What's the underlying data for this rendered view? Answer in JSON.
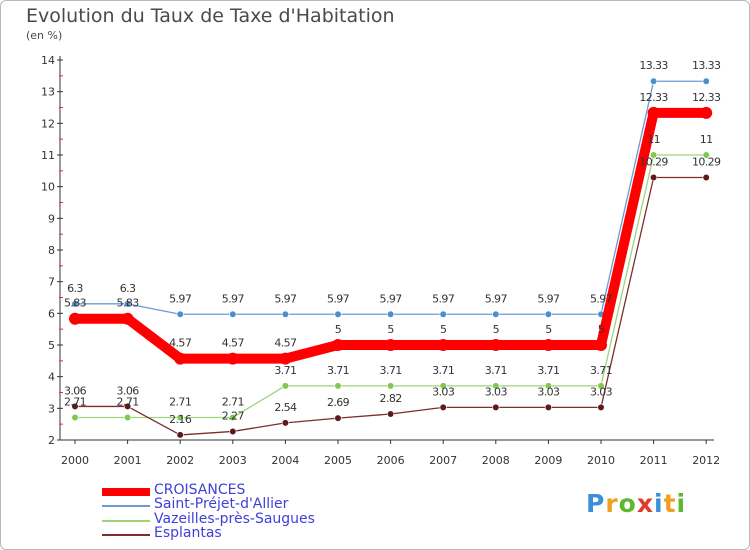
{
  "chart_data": {
    "type": "line",
    "title": "Evolution du Taux de Taxe d'Habitation",
    "subtitle": "(en %)",
    "xlabel": "",
    "ylabel": "",
    "categories": [
      "2000",
      "2001",
      "2002",
      "2003",
      "2004",
      "2005",
      "2006",
      "2007",
      "2008",
      "2009",
      "2010",
      "2011",
      "2012"
    ],
    "ylim": [
      2,
      14
    ],
    "yticks": [
      2,
      3,
      4,
      5,
      6,
      7,
      8,
      9,
      10,
      11,
      12,
      13,
      14
    ],
    "grid": false,
    "legend_position": "bottom-left",
    "series": [
      {
        "name": "Saint-Préjet-d'Allier",
        "color": "#6b9bd1",
        "marker": "#4a90d0",
        "emphasis": false,
        "values": [
          6.3,
          6.3,
          5.97,
          5.97,
          5.97,
          5.97,
          5.97,
          5.97,
          5.97,
          5.97,
          5.97,
          13.33,
          13.33
        ],
        "labels": [
          "6.3",
          "6.3",
          "5.97",
          "5.97",
          "5.97",
          "5.97",
          "5.97",
          "5.97",
          "5.97",
          "5.97",
          "5.97",
          "13.33",
          "13.33"
        ]
      },
      {
        "name": "Vazeilles-près-Saugues",
        "color": "#9ed47a",
        "marker": "#7fc94f",
        "emphasis": false,
        "values": [
          2.71,
          2.71,
          2.71,
          2.71,
          3.71,
          3.71,
          3.71,
          3.71,
          3.71,
          3.71,
          3.71,
          11,
          11
        ],
        "labels": [
          "2.71",
          "2.71",
          "2.71",
          "2.71",
          "3.71",
          "3.71",
          "3.71",
          "3.71",
          "3.71",
          "3.71",
          "3.71",
          "11",
          "11"
        ]
      },
      {
        "name": "Esplantas",
        "color": "#7a2e2e",
        "marker": "#5c1a1a",
        "emphasis": false,
        "values": [
          3.06,
          3.06,
          2.16,
          2.27,
          2.54,
          2.69,
          2.82,
          3.03,
          3.03,
          3.03,
          3.03,
          10.29,
          10.29
        ],
        "labels": [
          "3.06",
          "3.06",
          "2.16",
          "2.27",
          "2.54",
          "2.69",
          "2.82",
          "3.03",
          "3.03",
          "3.03",
          "3.03",
          "10.29",
          "10.29"
        ]
      },
      {
        "name": "CROISANCES",
        "color": "#ff0000",
        "marker": "#ff0000",
        "emphasis": true,
        "values": [
          5.83,
          5.83,
          4.57,
          4.57,
          4.57,
          5,
          5,
          5,
          5,
          5,
          5,
          12.33,
          12.33
        ],
        "labels": [
          "5.83",
          "5.83",
          "4.57",
          "4.57",
          "4.57",
          "5",
          "5",
          "5",
          "5",
          "5",
          "5",
          "12.33",
          "12.33"
        ]
      }
    ],
    "legend_order": [
      "CROISANCES",
      "Saint-Préjet-d'Allier",
      "Vazeilles-près-Saugues",
      "Esplantas"
    ]
  },
  "brand": {
    "letters": [
      "P",
      "r",
      "o",
      "x",
      "i",
      "t",
      "i"
    ],
    "colors": [
      "#3a8fd8",
      "#f0a020",
      "#5cb82e",
      "#e03a2a",
      "#3a8fd8",
      "#f0a020",
      "#5cb82e"
    ]
  }
}
